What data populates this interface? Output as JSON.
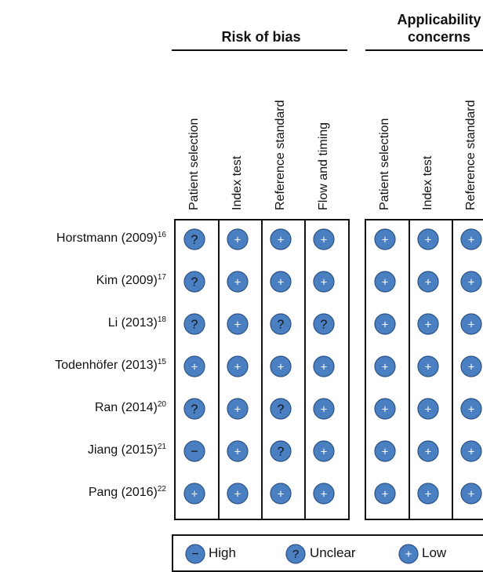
{
  "groups": {
    "risk_of_bias": "Risk of bias",
    "applicability_line1": "Applicability",
    "applicability_line2": "concerns"
  },
  "columns": {
    "risk_of_bias": [
      "Patient selection",
      "Index test",
      "Reference standard",
      "Flow and timing"
    ],
    "applicability": [
      "Patient selection",
      "Index test",
      "Reference standard"
    ]
  },
  "studies": [
    {
      "name": "Horstmann (2009)",
      "ref": "16",
      "risk": [
        "unclear",
        "low",
        "low",
        "low"
      ],
      "applicability": [
        "low",
        "low",
        "low"
      ]
    },
    {
      "name": "Kim (2009)",
      "ref": "17",
      "risk": [
        "unclear",
        "low",
        "low",
        "low"
      ],
      "applicability": [
        "low",
        "low",
        "low"
      ]
    },
    {
      "name": "Li (2013)",
      "ref": "18",
      "risk": [
        "unclear",
        "low",
        "unclear",
        "unclear"
      ],
      "applicability": [
        "low",
        "low",
        "low"
      ]
    },
    {
      "name": "Todenhöfer (2013)",
      "ref": "15",
      "risk": [
        "low",
        "low",
        "low",
        "low"
      ],
      "applicability": [
        "low",
        "low",
        "low"
      ]
    },
    {
      "name": "Ran (2014)",
      "ref": "20",
      "risk": [
        "unclear",
        "low",
        "unclear",
        "low"
      ],
      "applicability": [
        "low",
        "low",
        "low"
      ]
    },
    {
      "name": "Jiang (2015)",
      "ref": "21",
      "risk": [
        "high",
        "low",
        "unclear",
        "low"
      ],
      "applicability": [
        "low",
        "low",
        "low"
      ]
    },
    {
      "name": "Pang (2016)",
      "ref": "22",
      "risk": [
        "low",
        "low",
        "low",
        "low"
      ],
      "applicability": [
        "low",
        "low",
        "low"
      ]
    }
  ],
  "legend": {
    "high": {
      "glyph": "−",
      "label": "High"
    },
    "unclear": {
      "glyph": "?",
      "label": "Unclear"
    },
    "low": {
      "glyph": "+",
      "label": "Low"
    }
  },
  "colors": {
    "fill": "#4a7fc2",
    "stroke": "#2b5285",
    "glyph_dark": "#111111",
    "glyph_light": "#ffffff"
  }
}
